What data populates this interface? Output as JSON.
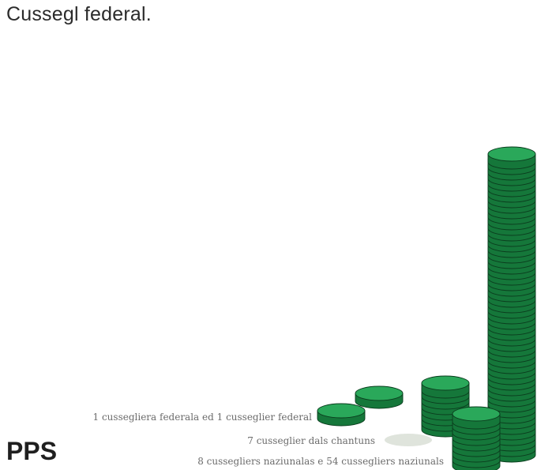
{
  "title": "Cussegl federal.",
  "party": "PPS",
  "colors": {
    "coin_top": "#2aa85a",
    "coin_side": "#15773a",
    "coin_edge": "#0b3d1e",
    "empty_coin": "#dfe4dc"
  },
  "chart_data": {
    "type": "bar",
    "rows": [
      {
        "label": "1 cussegliera federala ed 1 cusseglier federal",
        "values": [
          1,
          1
        ]
      },
      {
        "label": "7 cusseglier dals chantuns",
        "values": [
          0
        ]
      },
      {
        "label": "8 cussegliers naziunalas e 54 cussegliers naziunals",
        "values": [
          8,
          54
        ]
      }
    ]
  }
}
